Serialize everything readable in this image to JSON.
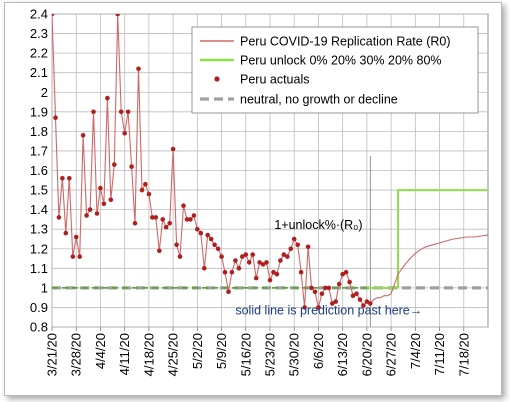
{
  "chart_data": {
    "type": "line",
    "ylim": [
      0.8,
      2.4
    ],
    "yticks": [
      0.8,
      0.9,
      1,
      1.1,
      1.2,
      1.3,
      1.4,
      1.5,
      1.6,
      1.7,
      1.8,
      1.9,
      2,
      2.1,
      2.2,
      2.3,
      2.4
    ],
    "ytick_labels": [
      "0.8",
      "0.9",
      "1",
      "1.1",
      "1.2",
      "1.3",
      "1.4",
      "1.5",
      "1.6",
      "1.7",
      "1.8",
      "1.9",
      "2",
      "2.1",
      "2.2",
      "2.3",
      "2.4"
    ],
    "xlim": [
      "3/21/20",
      "7/25/20"
    ],
    "xticks": [
      "3/21/20",
      "3/28/20",
      "4/4/20",
      "4/11/20",
      "4/18/20",
      "4/25/20",
      "5/2/20",
      "5/9/20",
      "5/16/20",
      "5/23/20",
      "5/30/20",
      "6/6/20",
      "6/13/20",
      "6/20/20",
      "6/27/20",
      "7/4/20",
      "7/11/20",
      "7/18/20"
    ],
    "grid": true,
    "legend_position": "top-right",
    "colors": {
      "replication": "#d06868",
      "unlock": "#8fe04a",
      "actuals": "#b01e1e",
      "neutral": "#a0a0a0",
      "green_dashed": "#5aa832",
      "annotation": "#1a3c8a"
    },
    "series": [
      {
        "name": "Peru COVID-19 Replication Rate (R0)",
        "kind": "line",
        "x": [
          "3/21/20",
          "3/22/20",
          "3/23/20",
          "3/24/20",
          "3/25/20",
          "3/26/20",
          "3/27/20",
          "3/28/20",
          "3/29/20",
          "3/30/20",
          "3/31/20",
          "4/1/20",
          "4/2/20",
          "4/3/20",
          "4/4/20",
          "4/5/20",
          "4/6/20",
          "4/7/20",
          "4/8/20",
          "4/9/20",
          "4/10/20",
          "4/11/20",
          "4/12/20",
          "4/13/20",
          "4/14/20",
          "4/15/20",
          "4/16/20",
          "4/17/20",
          "4/18/20",
          "4/19/20",
          "4/20/20",
          "4/21/20",
          "4/22/20",
          "4/23/20",
          "4/24/20",
          "4/25/20",
          "4/26/20",
          "4/27/20",
          "4/28/20",
          "4/29/20",
          "4/30/20",
          "5/1/20",
          "5/2/20",
          "5/3/20",
          "5/4/20",
          "5/5/20",
          "5/6/20",
          "5/7/20",
          "5/8/20",
          "5/9/20",
          "5/10/20",
          "5/11/20",
          "5/12/20",
          "5/13/20",
          "5/14/20",
          "5/15/20",
          "5/16/20",
          "5/17/20",
          "5/18/20",
          "5/19/20",
          "5/20/20",
          "5/21/20",
          "5/22/20",
          "5/23/20",
          "5/24/20",
          "5/25/20",
          "5/26/20",
          "5/27/20",
          "5/28/20",
          "5/29/20",
          "5/30/20",
          "5/31/20",
          "6/1/20",
          "6/2/20",
          "6/3/20",
          "6/4/20",
          "6/5/20",
          "6/6/20",
          "6/7/20",
          "6/8/20",
          "6/9/20",
          "6/10/20",
          "6/11/20",
          "6/12/20",
          "6/13/20",
          "6/14/20",
          "6/15/20",
          "6/16/20",
          "6/17/20",
          "6/18/20",
          "6/19/20",
          "6/20/20",
          "6/21/20",
          "6/22/20",
          "6/23/20",
          "6/24/20",
          "6/25/20",
          "6/26/20",
          "6/27/20",
          "6/28/20",
          "6/29/20",
          "7/1/20",
          "7/3/20",
          "7/5/20",
          "7/7/20",
          "7/9/20",
          "7/11/20",
          "7/13/20",
          "7/15/20",
          "7/17/20",
          "7/19/20",
          "7/21/20",
          "7/23/20",
          "7/25/20"
        ],
        "values": [
          2.4,
          1.87,
          1.36,
          1.56,
          1.28,
          1.56,
          1.16,
          1.26,
          1.16,
          1.78,
          1.37,
          1.4,
          1.9,
          1.38,
          1.51,
          1.43,
          1.97,
          1.45,
          1.63,
          2.4,
          1.9,
          1.79,
          1.9,
          1.62,
          1.33,
          2.12,
          1.5,
          1.53,
          1.48,
          1.36,
          1.36,
          1.19,
          1.35,
          1.31,
          1.33,
          1.71,
          1.22,
          1.16,
          1.42,
          1.35,
          1.35,
          1.37,
          1.3,
          1.28,
          1.1,
          1.27,
          1.25,
          1.22,
          1.2,
          1.16,
          1.08,
          0.98,
          1.08,
          1.14,
          1.1,
          1.16,
          1.17,
          1.13,
          1.17,
          1.05,
          1.13,
          1.12,
          1.13,
          1.04,
          1.08,
          1.07,
          1.14,
          1.17,
          1.16,
          1.2,
          1.25,
          1.22,
          1.08,
          0.9,
          1.21,
          1.0,
          0.98,
          0.9,
          0.97,
          1.0,
          1.0,
          0.92,
          0.93,
          1.02,
          1.07,
          1.08,
          1.03,
          0.96,
          0.97,
          0.94,
          0.91,
          0.93,
          0.92,
          0.94,
          0.95,
          0.95,
          0.96,
          0.96,
          0.97,
          1.02,
          1.07,
          1.12,
          1.16,
          1.19,
          1.21,
          1.22,
          1.23,
          1.24,
          1.25,
          1.255,
          1.26,
          1.26,
          1.265,
          1.27
        ]
      },
      {
        "name": "Peru unlock 0% 20% 30% 20% 80%",
        "kind": "step",
        "x": [
          "3/21/20",
          "6/29/20",
          "6/29/20",
          "7/25/20"
        ],
        "values": [
          1.0,
          1.0,
          1.5,
          1.5
        ]
      },
      {
        "name": "Peru actuals",
        "kind": "scatter",
        "x": [
          "3/21/20",
          "3/22/20",
          "3/23/20",
          "3/24/20",
          "3/25/20",
          "3/26/20",
          "3/27/20",
          "3/28/20",
          "3/29/20",
          "3/30/20",
          "3/31/20",
          "4/1/20",
          "4/2/20",
          "4/3/20",
          "4/4/20",
          "4/5/20",
          "4/6/20",
          "4/7/20",
          "4/8/20",
          "4/9/20",
          "4/10/20",
          "4/11/20",
          "4/12/20",
          "4/13/20",
          "4/14/20",
          "4/15/20",
          "4/16/20",
          "4/17/20",
          "4/18/20",
          "4/19/20",
          "4/20/20",
          "4/21/20",
          "4/22/20",
          "4/23/20",
          "4/24/20",
          "4/25/20",
          "4/26/20",
          "4/27/20",
          "4/28/20",
          "4/29/20",
          "4/30/20",
          "5/1/20",
          "5/2/20",
          "5/3/20",
          "5/4/20",
          "5/5/20",
          "5/6/20",
          "5/7/20",
          "5/8/20",
          "5/9/20",
          "5/10/20",
          "5/11/20",
          "5/12/20",
          "5/13/20",
          "5/14/20",
          "5/15/20",
          "5/16/20",
          "5/17/20",
          "5/18/20",
          "5/19/20",
          "5/20/20",
          "5/21/20",
          "5/22/20",
          "5/23/20",
          "5/24/20",
          "5/25/20",
          "5/26/20",
          "5/27/20",
          "5/28/20",
          "5/29/20",
          "5/30/20",
          "5/31/20",
          "6/1/20",
          "6/2/20",
          "6/3/20",
          "6/4/20",
          "6/5/20",
          "6/6/20",
          "6/7/20",
          "6/8/20",
          "6/9/20",
          "6/10/20",
          "6/11/20",
          "6/12/20",
          "6/13/20",
          "6/14/20",
          "6/15/20",
          "6/16/20",
          "6/17/20",
          "6/18/20",
          "6/19/20",
          "6/20/20",
          "6/21/20"
        ],
        "values": [
          2.4,
          1.87,
          1.36,
          1.56,
          1.28,
          1.56,
          1.16,
          1.26,
          1.16,
          1.78,
          1.37,
          1.4,
          1.9,
          1.38,
          1.51,
          1.43,
          1.97,
          1.45,
          1.63,
          2.4,
          1.9,
          1.79,
          1.9,
          1.62,
          1.33,
          2.12,
          1.5,
          1.53,
          1.48,
          1.36,
          1.36,
          1.19,
          1.35,
          1.31,
          1.33,
          1.71,
          1.22,
          1.16,
          1.42,
          1.35,
          1.35,
          1.37,
          1.3,
          1.28,
          1.1,
          1.27,
          1.25,
          1.22,
          1.2,
          1.16,
          1.08,
          0.98,
          1.08,
          1.14,
          1.1,
          1.16,
          1.17,
          1.13,
          1.17,
          1.05,
          1.13,
          1.12,
          1.13,
          1.04,
          1.08,
          1.07,
          1.14,
          1.17,
          1.16,
          1.2,
          1.25,
          1.22,
          1.08,
          0.9,
          1.21,
          1.0,
          0.98,
          0.9,
          0.97,
          1.0,
          1.0,
          0.92,
          0.93,
          1.02,
          1.07,
          1.08,
          1.03,
          0.96,
          0.97,
          0.94,
          0.91,
          0.93,
          0.92
        ]
      },
      {
        "name": "neutral, no growth or decline",
        "kind": "dashed",
        "x": [
          "3/21/20",
          "7/25/20"
        ],
        "values": [
          1.0,
          1.0
        ]
      }
    ],
    "annotations": [
      {
        "text": "1+unlock%·(R₀)",
        "x": "6/6/20",
        "y": 1.3
      },
      {
        "text": "solid line is prediction past here→",
        "x": "6/9/20",
        "y": 0.865
      }
    ],
    "prediction_start": "6/21/20"
  }
}
